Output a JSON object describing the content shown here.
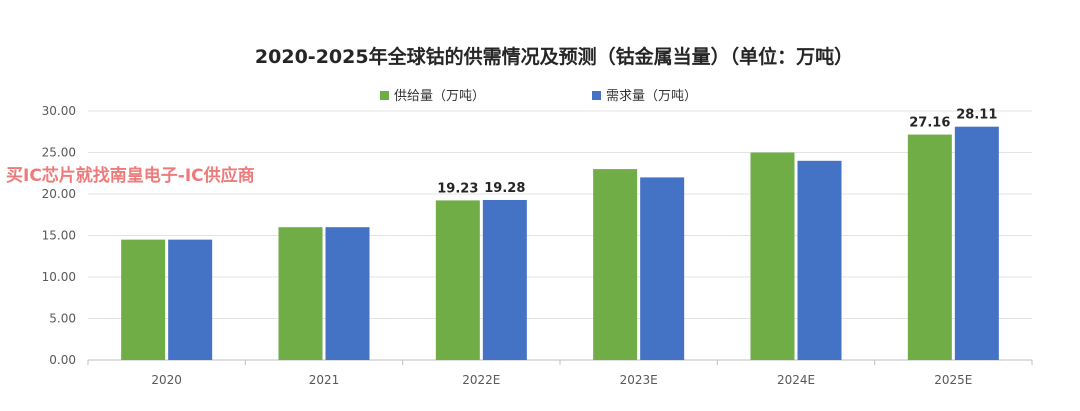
{
  "watermark": "买IC芯片就找南皇电子-IC供应商",
  "chart_data": {
    "type": "bar",
    "title": "2020-2025年全球钴的供需情况及预测（钴金属当量）（单位：万吨）",
    "categories": [
      "2020",
      "2021",
      "2022E",
      "2023E",
      "2024E",
      "2025E"
    ],
    "series": [
      {
        "name": "供给量（万吨）",
        "color": "#70ad47",
        "values": [
          14.5,
          16.0,
          19.23,
          23.0,
          25.0,
          27.16
        ],
        "labels": [
          null,
          null,
          "19.23",
          null,
          null,
          "27.16"
        ]
      },
      {
        "name": "需求量（万吨）",
        "color": "#4472c4",
        "values": [
          14.5,
          16.0,
          19.28,
          22.0,
          24.0,
          28.11
        ],
        "labels": [
          null,
          null,
          "19.28",
          null,
          null,
          "28.11"
        ]
      }
    ],
    "ylim": [
      0,
      30
    ],
    "yticks": [
      "0.00",
      "5.00",
      "10.00",
      "15.00",
      "20.00",
      "25.00",
      "30.00"
    ],
    "grid": true,
    "legend": "top-center"
  }
}
